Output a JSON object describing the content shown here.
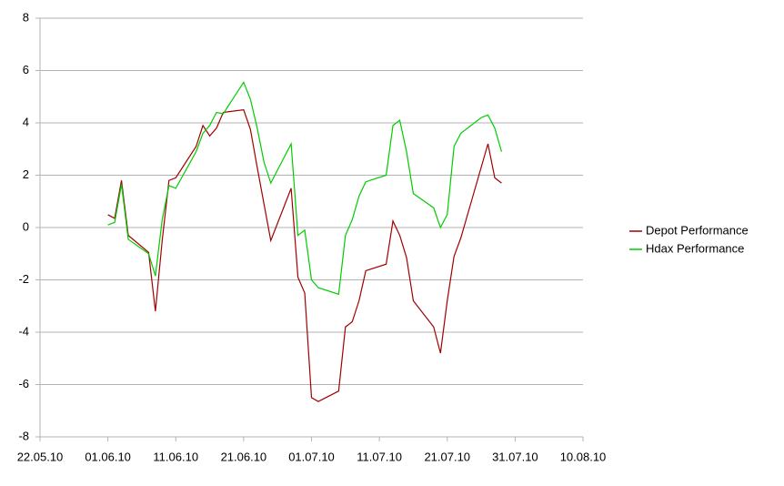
{
  "chart_data": {
    "type": "line",
    "x": [
      "01.06.10",
      "02.06.10",
      "03.06.10",
      "04.06.10",
      "07.06.10",
      "08.06.10",
      "09.06.10",
      "10.06.10",
      "11.06.10",
      "14.06.10",
      "15.06.10",
      "16.06.10",
      "17.06.10",
      "18.06.10",
      "21.06.10",
      "22.06.10",
      "23.06.10",
      "24.06.10",
      "25.06.10",
      "28.06.10",
      "29.06.10",
      "30.06.10",
      "01.07.10",
      "02.07.10",
      "05.07.10",
      "06.07.10",
      "07.07.10",
      "08.07.10",
      "09.07.10",
      "12.07.10",
      "13.07.10",
      "14.07.10",
      "15.07.10",
      "16.07.10",
      "19.07.10",
      "20.07.10",
      "21.07.10",
      "22.07.10",
      "23.07.10",
      "26.07.10",
      "27.07.10",
      "28.07.10",
      "29.07.10"
    ],
    "series": [
      {
        "name": "Depot Performance",
        "color": "#a00000",
        "values": [
          0.49,
          0.35,
          1.8,
          -0.3,
          -0.95,
          -3.2,
          -0.5,
          1.8,
          1.9,
          3.1,
          3.9,
          3.5,
          3.8,
          4.4,
          4.5,
          3.75,
          2.3,
          0.9,
          -0.5,
          1.5,
          -1.9,
          -2.5,
          -6.5,
          -6.65,
          -6.25,
          -3.8,
          -3.6,
          -2.8,
          -1.65,
          -1.4,
          0.25,
          -0.3,
          -1.15,
          -2.8,
          -3.8,
          -4.8,
          -2.8,
          -1.1,
          -0.4,
          2.3,
          3.2,
          1.9,
          1.7
        ]
      },
      {
        "name": "Hdax Performance",
        "color": "#00cc00",
        "values": [
          0.1,
          0.2,
          1.65,
          -0.45,
          -1.0,
          -1.85,
          0.3,
          1.6,
          1.5,
          2.9,
          3.6,
          3.9,
          4.4,
          4.35,
          5.55,
          4.9,
          3.8,
          2.5,
          1.7,
          3.2,
          -0.3,
          -0.1,
          -2.0,
          -2.3,
          -2.55,
          -0.3,
          0.3,
          1.2,
          1.75,
          2.0,
          3.9,
          4.1,
          2.9,
          1.3,
          0.75,
          0.0,
          0.5,
          3.1,
          3.6,
          4.2,
          4.3,
          3.8,
          2.9
        ]
      }
    ],
    "xlim": [
      "22.05.10",
      "10.08.10"
    ],
    "xticks": [
      "22.05.10",
      "01.06.10",
      "11.06.10",
      "21.06.10",
      "01.07.10",
      "11.07.10",
      "21.07.10",
      "31.07.10",
      "10.08.10"
    ],
    "ylim": [
      -8,
      8
    ],
    "yticks": [
      -8,
      -6,
      -4,
      -2,
      0,
      2,
      4,
      6,
      8
    ],
    "grid": true,
    "legend": "right"
  }
}
